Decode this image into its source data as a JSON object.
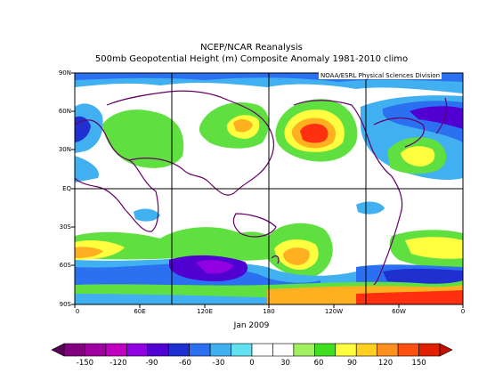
{
  "title": "NCEP/NCAR Reanalysis",
  "subtitle": "500mb Geopotential Height (m) Composite Anomaly 1981-2010 climo",
  "credit": "NOAA/ESRL Physical Sciences Division",
  "date_label": "Jan 2009",
  "lat_labels": [
    "90N",
    "60N",
    "30N",
    "EQ",
    "30S",
    "60S",
    "90S"
  ],
  "lon_labels": [
    "0",
    "60E",
    "120E",
    "180",
    "120W",
    "60W",
    "0"
  ],
  "colorbar": {
    "labels": [
      "-150",
      "-120",
      "-90",
      "-60",
      "-30",
      "0",
      "30",
      "60",
      "90",
      "120",
      "150"
    ],
    "colors": [
      "#800080",
      "#a000a0",
      "#c000c0",
      "#9000e0",
      "#5000d0",
      "#2030d0",
      "#2a70f0",
      "#40b0f0",
      "#60e0f0",
      "#ffffff",
      "#ffffff",
      "#a0f060",
      "#40e020",
      "#ffff40",
      "#ffd020",
      "#ff9020",
      "#ff5010",
      "#e02000"
    ]
  },
  "colors": {
    "white": "#ffffff",
    "blue_light": "#40b0f0",
    "blue": "#2a70f0",
    "blue_dark": "#2030d0",
    "violet": "#5000d0",
    "purple": "#9000e0",
    "green": "#60e040",
    "yellow": "#ffff40",
    "orange": "#ffb020",
    "red": "#ff3010"
  }
}
